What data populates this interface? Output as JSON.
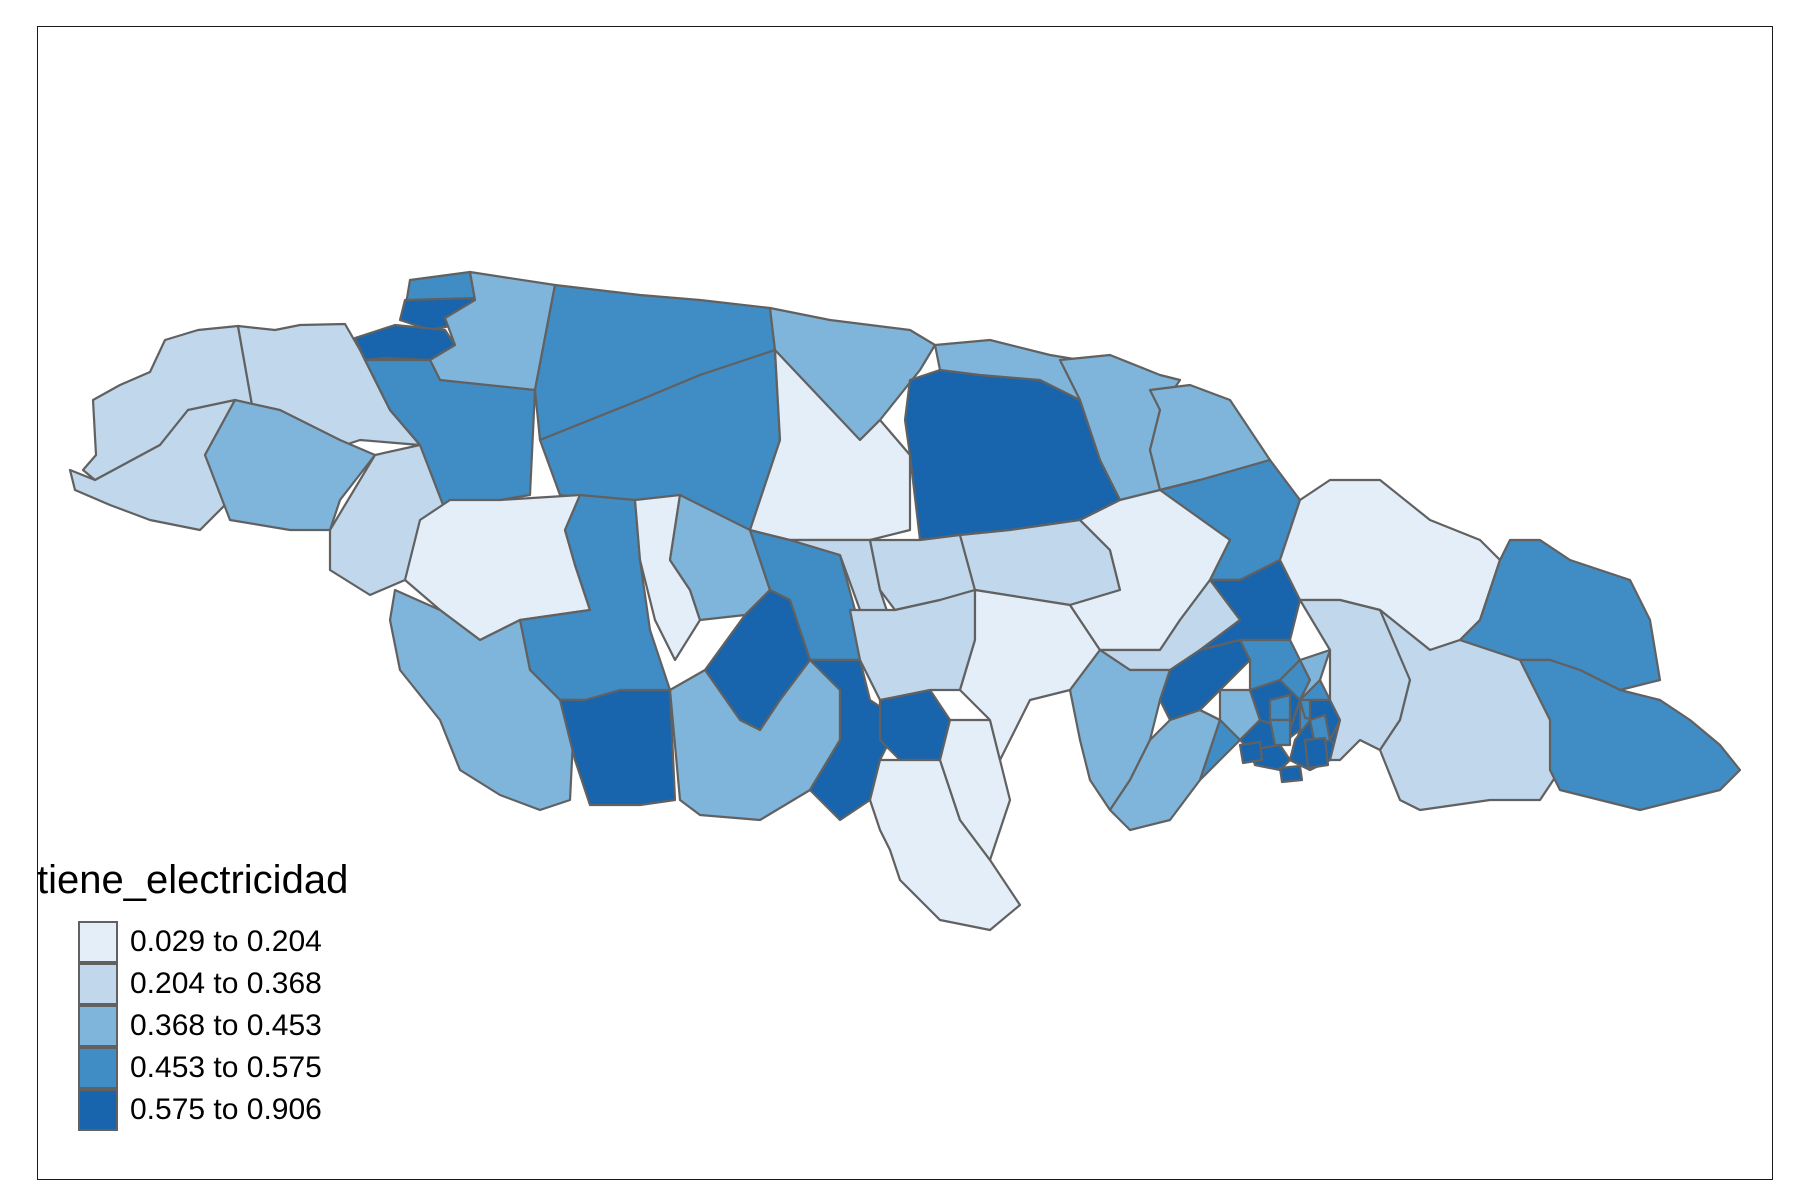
{
  "legend": {
    "title": "tiene_electricidad",
    "classes": [
      {
        "label": "0.029 to 0.204",
        "color": "#e3eef9"
      },
      {
        "label": "0.204 to 0.368",
        "color": "#c0d7ec"
      },
      {
        "label": "0.368 to 0.453",
        "color": "#7fb5da"
      },
      {
        "label": "0.453 to 0.575",
        "color": "#408cc4"
      },
      {
        "label": "0.575 to 0.906",
        "color": "#1865ad"
      }
    ]
  },
  "colors": {
    "border": "#616161",
    "frame": "#1a1a1a",
    "background": "#ffffff"
  }
}
